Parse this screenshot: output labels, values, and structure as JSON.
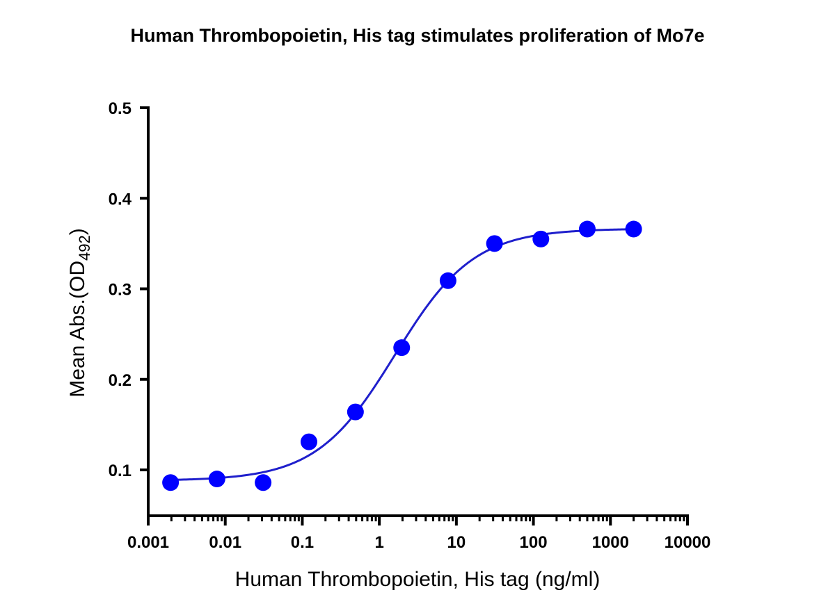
{
  "chart_data": {
    "type": "scatter",
    "title": "Human Thrombopoietin, His tag stimulates proliferation of Mo7e",
    "xlabel": "Human Thrombopoietin, His tag (ng/ml)",
    "ylabel": {
      "main": "Mean Abs.(OD",
      "subscript": "492",
      "close": ")"
    },
    "x_scale": "log",
    "xlim": [
      0.001,
      10000
    ],
    "ylim": [
      0.05,
      0.5
    ],
    "x_ticks": [
      0.001,
      0.01,
      0.1,
      1,
      10,
      100,
      1000,
      10000
    ],
    "x_tick_labels": [
      "0.001",
      "0.01",
      "0.1",
      "1",
      "10",
      "100",
      "1000",
      "10000"
    ],
    "y_ticks": [
      0.1,
      0.2,
      0.3,
      0.4,
      0.5
    ],
    "y_tick_labels": [
      "0.1",
      "0.2",
      "0.3",
      "0.4",
      "0.5"
    ],
    "grid": false,
    "series": [
      {
        "x": [
          0.00195,
          0.0078,
          0.031,
          0.122,
          0.49,
          1.95,
          7.8,
          31.25,
          125,
          500,
          2000
        ],
        "y": [
          0.086,
          0.09,
          0.086,
          0.131,
          0.164,
          0.235,
          0.309,
          0.35,
          0.355,
          0.366,
          0.366
        ],
        "color": "#0000ff",
        "marker": "circle",
        "fit_line": "four-parameter logistic",
        "line_color": "#1f1fcc"
      }
    ]
  }
}
